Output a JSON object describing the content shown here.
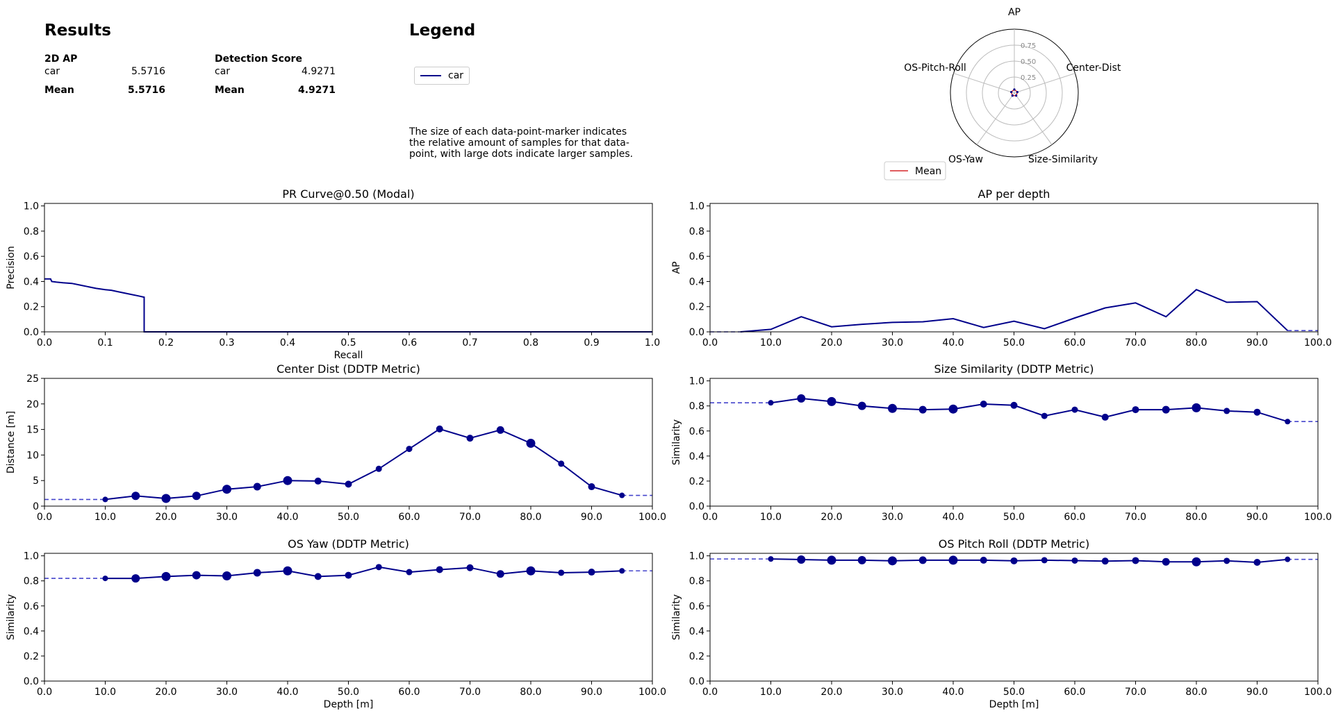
{
  "results": {
    "title": "Results",
    "ap_header": "2D AP",
    "score_header": "Detection Score",
    "ap_rows": [
      {
        "label": "car",
        "value": "5.5716"
      }
    ],
    "score_rows": [
      {
        "label": "car",
        "value": "4.9271"
      }
    ],
    "ap_mean": {
      "label": "Mean",
      "value": "5.5716"
    },
    "score_mean": {
      "label": "Mean",
      "value": "4.9271"
    }
  },
  "legend": {
    "title": "Legend",
    "entry": "car",
    "color": "#00008b",
    "note_lines": [
      "The size of each data-point-marker indicates",
      "the relative amount of samples for that data-",
      "point, with large dots indicate larger samples."
    ]
  },
  "chart_data": [
    {
      "type": "radar",
      "axes": [
        "AP",
        "Center-Dist",
        "Size-Similarity",
        "OS-Yaw",
        "OS-Pitch-Roll"
      ],
      "radial_ticks": [
        "0.25",
        "0.50",
        "0.75"
      ],
      "rlim": [
        0,
        1
      ],
      "series": [
        {
          "name": "Mean",
          "color": "#d62728",
          "values": [
            0.056,
            0.05,
            0.05,
            0.05,
            0.05
          ]
        }
      ],
      "legend": "Mean"
    },
    {
      "type": "line",
      "title": "PR Curve@0.50 (Modal)",
      "xlabel": "Recall",
      "ylabel": "Precision",
      "xlim": [
        0,
        1
      ],
      "ylim": [
        0,
        1.02
      ],
      "xticks": [
        "0.0",
        "0.1",
        "0.2",
        "0.3",
        "0.4",
        "0.5",
        "0.6",
        "0.7",
        "0.8",
        "0.9",
        "1.0"
      ],
      "yticks": [
        "0.0",
        "0.2",
        "0.4",
        "0.6",
        "0.8",
        "1.0"
      ],
      "series": [
        {
          "name": "car",
          "points": [
            [
              0,
              0.42
            ],
            [
              0.01,
              0.42
            ],
            [
              0.012,
              0.4
            ],
            [
              0.02,
              0.395
            ],
            [
              0.03,
              0.39
            ],
            [
              0.045,
              0.385
            ],
            [
              0.06,
              0.37
            ],
            [
              0.07,
              0.36
            ],
            [
              0.085,
              0.345
            ],
            [
              0.1,
              0.335
            ],
            [
              0.11,
              0.33
            ],
            [
              0.12,
              0.32
            ],
            [
              0.14,
              0.3
            ],
            [
              0.155,
              0.285
            ],
            [
              0.164,
              0.275
            ],
            [
              0.164,
              0.0
            ],
            [
              1.0,
              0.0
            ]
          ]
        }
      ]
    },
    {
      "type": "line",
      "title": "AP per depth",
      "xlabel": "",
      "ylabel": "AP",
      "xlim": [
        0,
        100
      ],
      "ylim": [
        0,
        1.02
      ],
      "xticks": [
        "0.0",
        "10.0",
        "20.0",
        "30.0",
        "40.0",
        "50.0",
        "60.0",
        "70.0",
        "80.0",
        "90.0",
        "100.0"
      ],
      "yticks": [
        "0.0",
        "0.2",
        "0.4",
        "0.6",
        "0.8",
        "1.0"
      ],
      "series": [
        {
          "name": "car",
          "points": [
            [
              5,
              0.0
            ],
            [
              10,
              0.02
            ],
            [
              15,
              0.12
            ],
            [
              20,
              0.04
            ],
            [
              25,
              0.06
            ],
            [
              30,
              0.075
            ],
            [
              35,
              0.08
            ],
            [
              40,
              0.105
            ],
            [
              45,
              0.035
            ],
            [
              50,
              0.085
            ],
            [
              55,
              0.025
            ],
            [
              60,
              0.11
            ],
            [
              65,
              0.19
            ],
            [
              70,
              0.23
            ],
            [
              75,
              0.12
            ],
            [
              80,
              0.335
            ],
            [
              85,
              0.235
            ],
            [
              90,
              0.24
            ],
            [
              95,
              0.01
            ]
          ]
        }
      ],
      "dashed_left": [
        [
          0,
          0
        ],
        [
          5,
          0
        ]
      ],
      "dashed_right": [
        [
          95,
          0.01
        ],
        [
          100,
          0.01
        ]
      ]
    },
    {
      "type": "line",
      "title": "Center Dist (DDTP Metric)",
      "xlabel": "",
      "ylabel": "Distance [m]",
      "xlim": [
        0,
        100
      ],
      "ylim": [
        0,
        25
      ],
      "xticks": [
        "0.0",
        "10.0",
        "20.0",
        "30.0",
        "40.0",
        "50.0",
        "60.0",
        "70.0",
        "80.0",
        "90.0",
        "100.0"
      ],
      "yticks": [
        "0",
        "5",
        "10",
        "15",
        "20",
        "25"
      ],
      "series": [
        {
          "name": "car",
          "x": [
            10,
            15,
            20,
            25,
            30,
            35,
            40,
            45,
            50,
            55,
            60,
            65,
            70,
            75,
            80,
            85,
            90,
            95
          ],
          "y": [
            1.3,
            2.0,
            1.5,
            2.0,
            3.3,
            3.8,
            5.0,
            4.9,
            4.3,
            7.3,
            11.2,
            15.1,
            13.3,
            14.9,
            12.3,
            8.3,
            3.8,
            2.1
          ],
          "sizes": [
            6,
            10,
            11,
            10,
            11,
            9,
            11,
            8,
            8,
            7,
            7,
            8,
            8,
            9,
            11,
            7,
            8,
            6
          ]
        }
      ],
      "dashed_left": [
        [
          0,
          1.3
        ],
        [
          10,
          1.3
        ]
      ],
      "dashed_right": [
        [
          95,
          2.1
        ],
        [
          100,
          2.1
        ]
      ]
    },
    {
      "type": "line",
      "title": "Size Similarity (DDTP Metric)",
      "xlabel": "",
      "ylabel": "Similarity",
      "xlim": [
        0,
        100
      ],
      "ylim": [
        0,
        1.02
      ],
      "xticks": [
        "0.0",
        "10.0",
        "20.0",
        "30.0",
        "40.0",
        "50.0",
        "60.0",
        "70.0",
        "80.0",
        "90.0",
        "100.0"
      ],
      "yticks": [
        "0.0",
        "0.2",
        "0.4",
        "0.6",
        "0.8",
        "1.0"
      ],
      "series": [
        {
          "name": "car",
          "x": [
            10,
            15,
            20,
            25,
            30,
            35,
            40,
            45,
            50,
            55,
            60,
            65,
            70,
            75,
            80,
            85,
            90,
            95
          ],
          "y": [
            0.825,
            0.86,
            0.835,
            0.8,
            0.78,
            0.77,
            0.775,
            0.815,
            0.805,
            0.72,
            0.77,
            0.71,
            0.77,
            0.77,
            0.785,
            0.76,
            0.75,
            0.675
          ],
          "sizes": [
            6,
            10,
            11,
            10,
            11,
            9,
            11,
            8,
            8,
            7,
            7,
            8,
            8,
            9,
            11,
            7,
            8,
            6
          ]
        }
      ],
      "dashed_left": [
        [
          0,
          0.825
        ],
        [
          10,
          0.825
        ]
      ],
      "dashed_right": [
        [
          95,
          0.675
        ],
        [
          100,
          0.675
        ]
      ]
    },
    {
      "type": "line",
      "title": "OS Yaw (DDTP Metric)",
      "xlabel": "Depth [m]",
      "ylabel": "Similarity",
      "xlim": [
        0,
        100
      ],
      "ylim": [
        0,
        1.02
      ],
      "xticks": [
        "0.0",
        "10.0",
        "20.0",
        "30.0",
        "40.0",
        "50.0",
        "60.0",
        "70.0",
        "80.0",
        "90.0",
        "100.0"
      ],
      "yticks": [
        "0.0",
        "0.2",
        "0.4",
        "0.6",
        "0.8",
        "1.0"
      ],
      "series": [
        {
          "name": "car",
          "x": [
            10,
            15,
            20,
            25,
            30,
            35,
            40,
            45,
            50,
            55,
            60,
            65,
            70,
            75,
            80,
            85,
            90,
            95
          ],
          "y": [
            0.82,
            0.82,
            0.835,
            0.845,
            0.84,
            0.865,
            0.88,
            0.835,
            0.845,
            0.91,
            0.87,
            0.89,
            0.905,
            0.855,
            0.88,
            0.865,
            0.87,
            0.88
          ],
          "sizes": [
            6,
            10,
            11,
            10,
            11,
            9,
            11,
            8,
            8,
            7,
            7,
            8,
            8,
            9,
            11,
            7,
            8,
            6
          ]
        }
      ],
      "dashed_left": [
        [
          0,
          0.82
        ],
        [
          10,
          0.82
        ]
      ],
      "dashed_right": [
        [
          95,
          0.88
        ],
        [
          100,
          0.88
        ]
      ]
    },
    {
      "type": "line",
      "title": "OS Pitch Roll (DDTP Metric)",
      "xlabel": "Depth [m]",
      "ylabel": "Similarity",
      "xlim": [
        0,
        100
      ],
      "ylim": [
        0,
        1.02
      ],
      "xticks": [
        "0.0",
        "10.0",
        "20.0",
        "30.0",
        "40.0",
        "50.0",
        "60.0",
        "70.0",
        "80.0",
        "90.0",
        "100.0"
      ],
      "yticks": [
        "0.0",
        "0.2",
        "0.4",
        "0.6",
        "0.8",
        "1.0"
      ],
      "series": [
        {
          "name": "car",
          "x": [
            10,
            15,
            20,
            25,
            30,
            35,
            40,
            45,
            50,
            55,
            60,
            65,
            70,
            75,
            80,
            85,
            90,
            95
          ],
          "y": [
            0.975,
            0.97,
            0.965,
            0.965,
            0.96,
            0.965,
            0.965,
            0.965,
            0.96,
            0.965,
            0.962,
            0.958,
            0.962,
            0.952,
            0.952,
            0.96,
            0.948,
            0.972
          ],
          "sizes": [
            6,
            10,
            11,
            10,
            11,
            9,
            11,
            8,
            8,
            7,
            7,
            8,
            8,
            9,
            11,
            7,
            8,
            6
          ]
        }
      ],
      "dashed_left": [
        [
          0,
          0.975
        ],
        [
          10,
          0.975
        ]
      ],
      "dashed_right": [
        [
          95,
          0.972
        ],
        [
          100,
          0.972
        ]
      ]
    }
  ]
}
